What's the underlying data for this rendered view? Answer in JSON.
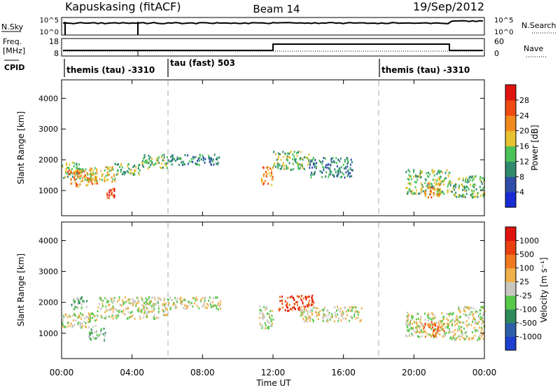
{
  "header": {
    "station": "Kapuskasing (fitACF)",
    "beam": "Beam 14",
    "date": "19/Sep/2012"
  },
  "top_panels": {
    "nsky": {
      "label": "N.Sky",
      "tick_labels": [
        "10^5",
        "10^0"
      ],
      "right_label": "N.Search",
      "right_tick_labels": [
        "10^5",
        "10^0"
      ]
    },
    "freq": {
      "label_line1": "Freq.",
      "label_line2": "[MHz]",
      "tick_labels": [
        "18",
        "8"
      ],
      "right_label": "Nave",
      "right_tick_labels": [
        "60",
        "0"
      ]
    },
    "cpid": {
      "label": "CPID",
      "segments": [
        {
          "start": 0,
          "end": 6,
          "text": "themis (tau) -3310"
        },
        {
          "start": 6,
          "end": 18,
          "text": "tau (fast) 503"
        },
        {
          "start": 18,
          "end": 24,
          "text": "themis (tau) -3310"
        }
      ]
    }
  },
  "chart_data": [
    {
      "type": "heatmap",
      "title": "",
      "ylabel": "Slant Range [km]",
      "xlim": [
        0,
        24
      ],
      "ylim": [
        180,
        4600
      ],
      "yticks": [
        1000,
        2000,
        3000,
        4000
      ],
      "colorbar": {
        "label": "Power [dB]",
        "tick_labels": [
          "4",
          "8",
          "12",
          "16",
          "20",
          "24",
          "28"
        ],
        "colors": [
          "#1a2bd6",
          "#2f4ea8",
          "#2f8a6e",
          "#4cc25a",
          "#e6c230",
          "#f08a1c",
          "#ef4a14",
          "#e0140f"
        ]
      },
      "echo_bands": [
        {
          "t0": 0.0,
          "t1": 1.0,
          "r0": 1400,
          "r1": 2000,
          "level": 3
        },
        {
          "t0": 0.3,
          "t1": 2.0,
          "r0": 1150,
          "r1": 1700,
          "level": 5
        },
        {
          "t0": 1.0,
          "t1": 3.0,
          "r0": 1300,
          "r1": 1800,
          "level": 4
        },
        {
          "t0": 2.5,
          "t1": 3.0,
          "r0": 780,
          "r1": 1100,
          "level": 6
        },
        {
          "t0": 3.0,
          "t1": 4.5,
          "r0": 1500,
          "r1": 1900,
          "level": 3
        },
        {
          "t0": 4.5,
          "t1": 6.0,
          "r0": 1750,
          "r1": 2200,
          "level": 3
        },
        {
          "t0": 6.0,
          "t1": 9.0,
          "r0": 1850,
          "r1": 2200,
          "level": 2
        },
        {
          "t0": 11.3,
          "t1": 12.0,
          "r0": 1200,
          "r1": 1800,
          "level": 5
        },
        {
          "t0": 12.0,
          "t1": 14.0,
          "r0": 1700,
          "r1": 2300,
          "level": 3
        },
        {
          "t0": 14.0,
          "t1": 16.5,
          "r0": 1450,
          "r1": 2100,
          "level": 2
        },
        {
          "t0": 19.5,
          "t1": 22.0,
          "r0": 900,
          "r1": 1700,
          "level": 3
        },
        {
          "t0": 20.5,
          "t1": 21.5,
          "r0": 800,
          "r1": 1300,
          "level": 5
        },
        {
          "t0": 22.0,
          "t1": 24.0,
          "r0": 800,
          "r1": 1500,
          "level": 3
        }
      ]
    },
    {
      "type": "heatmap",
      "title": "",
      "ylabel": "Slant Range [km]",
      "xlabel": "Time UT",
      "xlim": [
        0,
        24
      ],
      "ylim": [
        180,
        4600
      ],
      "yticks": [
        1000,
        2000,
        3000,
        4000
      ],
      "xtick_labels": [
        "00:00",
        "04:00",
        "08:00",
        "12:00",
        "16:00",
        "20:00",
        "00:00"
      ],
      "colorbar": {
        "label": "Velocity [m s⁻¹]",
        "tick_labels": [
          "1000",
          "500",
          "100",
          "25",
          "-25",
          "-100",
          "-500",
          "-1000"
        ],
        "colors": [
          "#1c3fd0",
          "#2e5fa8",
          "#2e8a5a",
          "#58c84a",
          "#c8c8c0",
          "#f0b04a",
          "#f07a20",
          "#e84010",
          "#e0140f"
        ]
      },
      "echo_bands": [
        {
          "t0": 0.0,
          "t1": 2.0,
          "r0": 1200,
          "r1": 1700,
          "level": 4
        },
        {
          "t0": 0.5,
          "t1": 1.5,
          "r0": 1800,
          "r1": 2200,
          "level": 3
        },
        {
          "t0": 1.5,
          "t1": 2.5,
          "r0": 800,
          "r1": 1200,
          "level": 3
        },
        {
          "t0": 2.0,
          "t1": 6.0,
          "r0": 1500,
          "r1": 2200,
          "level": 4
        },
        {
          "t0": 6.0,
          "t1": 9.0,
          "r0": 1800,
          "r1": 2200,
          "level": 4
        },
        {
          "t0": 11.2,
          "t1": 12.0,
          "r0": 1150,
          "r1": 1900,
          "level": 4
        },
        {
          "t0": 12.3,
          "t1": 14.3,
          "r0": 1750,
          "r1": 2250,
          "level": 7
        },
        {
          "t0": 13.5,
          "t1": 17.0,
          "r0": 1400,
          "r1": 1900,
          "level": 4
        },
        {
          "t0": 19.5,
          "t1": 22.0,
          "r0": 900,
          "r1": 1700,
          "level": 4
        },
        {
          "t0": 20.5,
          "t1": 21.7,
          "r0": 900,
          "r1": 1400,
          "level": 6
        },
        {
          "t0": 22.0,
          "t1": 24.0,
          "r0": 800,
          "r1": 1900,
          "level": 4
        }
      ]
    }
  ]
}
